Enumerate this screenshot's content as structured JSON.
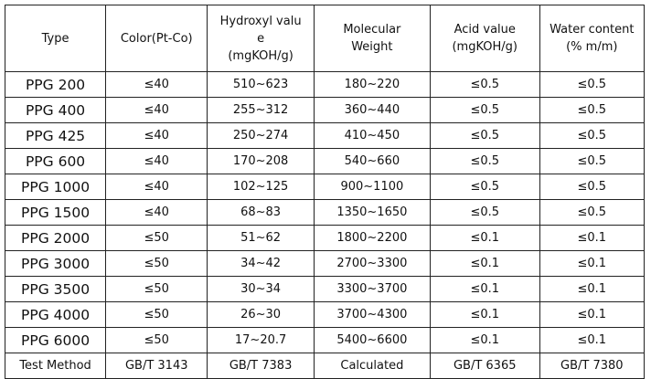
{
  "table": {
    "headers": [
      {
        "lines": [
          "Type"
        ]
      },
      {
        "lines": [
          "Color(Pt-Co)"
        ]
      },
      {
        "lines": [
          "Hydroxyl valu",
          "e",
          "(mgKOH/g)"
        ]
      },
      {
        "lines": [
          "Molecular",
          "Weight"
        ]
      },
      {
        "lines": [
          "Acid value",
          "(mgKOH/g)"
        ]
      },
      {
        "lines": [
          "Water content",
          "(% m/m)"
        ]
      }
    ],
    "rows": [
      [
        "PPG 200",
        "≤40",
        "510~623",
        "180~220",
        "≤0.5",
        "≤0.5"
      ],
      [
        "PPG 400",
        "≤40",
        "255~312",
        "360~440",
        "≤0.5",
        "≤0.5"
      ],
      [
        "PPG 425",
        "≤40",
        "250~274",
        "410~450",
        "≤0.5",
        "≤0.5"
      ],
      [
        "PPG 600",
        "≤40",
        "170~208",
        "540~660",
        "≤0.5",
        "≤0.5"
      ],
      [
        "PPG 1000",
        "≤40",
        "102~125",
        "900~1100",
        "≤0.5",
        "≤0.5"
      ],
      [
        "PPG 1500",
        "≤40",
        "68~83",
        "1350~1650",
        "≤0.5",
        "≤0.5"
      ],
      [
        "PPG 2000",
        "≤50",
        "51~62",
        "1800~2200",
        "≤0.1",
        "≤0.1"
      ],
      [
        "PPG 3000",
        "≤50",
        "34~42",
        "2700~3300",
        "≤0.1",
        "≤0.1"
      ],
      [
        "PPG 3500",
        "≤50",
        "30~34",
        "3300~3700",
        "≤0.1",
        "≤0.1"
      ],
      [
        "PPG 4000",
        "≤50",
        "26~30",
        "3700~4300",
        "≤0.1",
        "≤0.1"
      ],
      [
        "PPG 6000",
        "≤50",
        "17~20.7",
        "5400~6600",
        "≤0.1",
        "≤0.1"
      ]
    ],
    "footer": [
      "Test Method",
      "GB/T 3143",
      "GB/T 7383",
      "Calculated",
      "GB/T 6365",
      "GB/T 7380"
    ]
  }
}
